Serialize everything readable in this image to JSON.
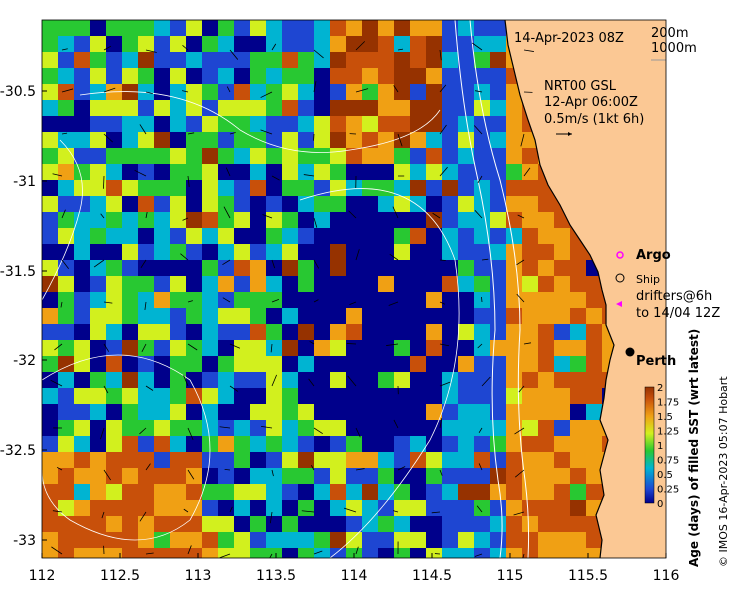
{
  "map": {
    "timestamp": "14-Apr-2023 08Z",
    "isobaths": [
      "200m",
      "1000m"
    ],
    "current_info": [
      "NRT00 GSL",
      "12-Apr 06:00Z",
      "0.5m/s (1kt 6h)"
    ],
    "legend": {
      "argo": "Argo",
      "ship": "Ship",
      "drifters": [
        "drifters@6h",
        "to 14/04 12Z"
      ]
    },
    "city": "Perth",
    "x_ticks": [
      "112",
      "112.5",
      "113",
      "113.5",
      "114",
      "114.5",
      "115",
      "115.5",
      "116"
    ],
    "y_ticks": [
      "-30.5",
      "-31",
      "-31.5",
      "-32",
      "-32.5",
      "-33"
    ],
    "colorbar": {
      "title": "Age (days) of filled SST (wrt latest)",
      "ticks": [
        "2",
        "1.75",
        "1.5",
        "1.25",
        "1",
        "0.75",
        "0.5",
        "0.25",
        "0"
      ]
    },
    "credit": "© IMOS 16-Apr-2023 05:07 Hobart",
    "colors": {
      "land": "#fbc894",
      "deep": "#00008b",
      "blue": "#1e46d2",
      "cyan": "#00b4d2",
      "green": "#28c832",
      "yellow": "#d2f01e",
      "orange": "#f0a014",
      "rust": "#c8500a",
      "brown": "#963200"
    }
  }
}
